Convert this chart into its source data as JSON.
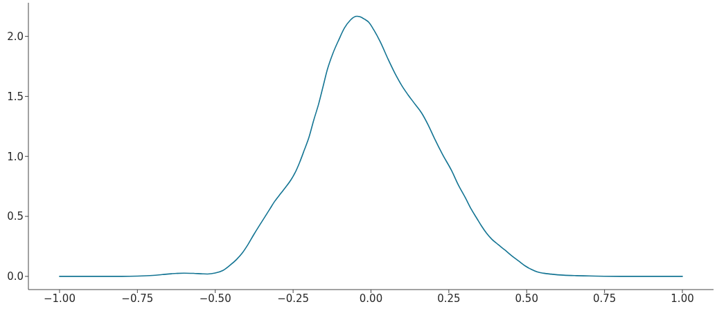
{
  "chart_data": {
    "type": "line",
    "color": "#137493",
    "x": [
      -1.0,
      -0.9,
      -0.8,
      -0.75,
      -0.7,
      -0.67,
      -0.64,
      -0.6,
      -0.57,
      -0.54,
      -0.525,
      -0.5,
      -0.475,
      -0.451,
      -0.432,
      -0.414,
      -0.395,
      -0.377,
      -0.358,
      -0.34,
      -0.325,
      -0.31,
      -0.29,
      -0.273,
      -0.258,
      -0.244,
      -0.229,
      -0.214,
      -0.199,
      -0.184,
      -0.168,
      -0.154,
      -0.14,
      -0.122,
      -0.103,
      -0.085,
      -0.066,
      -0.055,
      -0.045,
      -0.035,
      -0.022,
      -0.007,
      0.01,
      0.03,
      0.055,
      0.082,
      0.1,
      0.119,
      0.14,
      0.163,
      0.184,
      0.204,
      0.23,
      0.259,
      0.28,
      0.304,
      0.322,
      0.341,
      0.355,
      0.37,
      0.388,
      0.407,
      0.43,
      0.452,
      0.475,
      0.496,
      0.515,
      0.533,
      0.555,
      0.578,
      0.618,
      0.66,
      0.7,
      0.75,
      0.8,
      0.9,
      1.0
    ],
    "values": [
      0.0,
      0.0,
      0.0,
      0.002,
      0.008,
      0.015,
      0.022,
      0.027,
      0.025,
      0.021,
      0.02,
      0.028,
      0.05,
      0.096,
      0.14,
      0.192,
      0.265,
      0.345,
      0.425,
      0.498,
      0.56,
      0.622,
      0.69,
      0.747,
      0.8,
      0.862,
      0.95,
      1.053,
      1.16,
      1.3,
      1.437,
      1.58,
      1.724,
      1.86,
      1.973,
      2.07,
      2.136,
      2.16,
      2.168,
      2.163,
      2.145,
      2.117,
      2.05,
      1.954,
      1.81,
      1.667,
      1.585,
      1.513,
      1.44,
      1.36,
      1.26,
      1.149,
      1.015,
      0.881,
      0.765,
      0.651,
      0.56,
      0.479,
      0.42,
      0.364,
      0.31,
      0.268,
      0.22,
      0.172,
      0.127,
      0.086,
      0.058,
      0.038,
      0.026,
      0.019,
      0.01,
      0.006,
      0.004,
      0.001,
      0.0,
      0.0,
      0.0
    ],
    "xlim": [
      -1.1,
      1.1
    ],
    "ylim": [
      -0.11,
      2.28
    ],
    "xticks": [
      {
        "value": -1.0,
        "label": "−1.00"
      },
      {
        "value": -0.75,
        "label": "−0.75"
      },
      {
        "value": -0.5,
        "label": "−0.50"
      },
      {
        "value": -0.25,
        "label": "−0.25"
      },
      {
        "value": 0,
        "label": "0.00"
      },
      {
        "value": 0.25,
        "label": "0.25"
      },
      {
        "value": 0.5,
        "label": "0.50"
      },
      {
        "value": 0.75,
        "label": "0.75"
      },
      {
        "value": 1.0,
        "label": "1.00"
      }
    ],
    "yticks": [
      {
        "value": 0,
        "label": "0.0"
      },
      0.5,
      {
        "value": 1.0,
        "label": "1.0"
      },
      1.5,
      {
        "value": 2.0,
        "label": "2.0"
      }
    ]
  }
}
